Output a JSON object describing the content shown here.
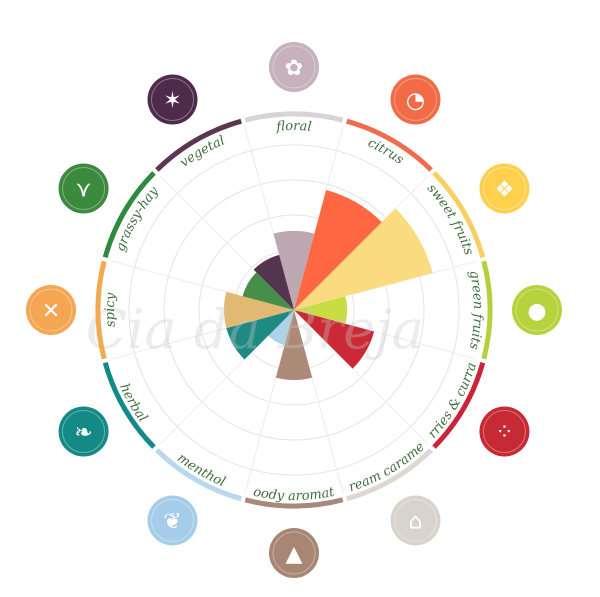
{
  "chart_data": {
    "type": "polar-area",
    "max_value": 100,
    "grid": true,
    "watermark": "Cia da Breja",
    "categories": [
      {
        "name": "floral",
        "value": 45,
        "color": "#b9a2ad",
        "icon": "flower-icon"
      },
      {
        "name": "citrus",
        "value": 80,
        "color": "#ff6038",
        "icon": "citrus-slice-icon"
      },
      {
        "name": "sweet fruits",
        "value": 95,
        "color": "#fbd979",
        "icon": "pineapple-icon"
      },
      {
        "name": "green fruits",
        "value": 25,
        "color": "#c5da3a",
        "icon": "apple-pear-icon"
      },
      {
        "name": "berries & currant",
        "value": 48,
        "color": "#c91e2b",
        "icon": "berries-icon"
      },
      {
        "name": "cream caramel",
        "value": 0,
        "color": "#d8d2cc",
        "icon": "cream-jar-icon"
      },
      {
        "name": "woody aromatic",
        "value": 38,
        "color": "#a88471",
        "icon": "pine-tree-icon"
      },
      {
        "name": "menthol",
        "value": 12,
        "color": "#a9d1ea",
        "icon": "mint-leaf-icon"
      },
      {
        "name": "herbal",
        "value": 38,
        "color": "#13847b",
        "icon": "leaf-icon"
      },
      {
        "name": "spicy",
        "value": 38,
        "color": "#dfb56a",
        "icon": "chili-icon"
      },
      {
        "name": "grassy-hay",
        "value": 25,
        "color": "#3d8840",
        "icon": "grass-icon"
      },
      {
        "name": "vegetal",
        "value": 28,
        "color": "#4a2a47",
        "icon": "onion-icon"
      }
    ],
    "ring_colors": [
      "#d8d3d6",
      "#ee6d4f",
      "#f8cf63",
      "#b4d03a",
      "#c8253a",
      "#ded8d2",
      "#a8887a",
      "#b7d8ee",
      "#14898a",
      "#f3a94f",
      "#2e8a3f",
      "#5c3550"
    ],
    "icon_colors": [
      "#c6b1bd",
      "#f26b47",
      "#fdd04e",
      "#b6d23c",
      "#c52a35",
      "#d9d3cd",
      "#a78674",
      "#a5cde9",
      "#138a86",
      "#f5a653",
      "#3b8a3d",
      "#4e2b4a"
    ]
  }
}
